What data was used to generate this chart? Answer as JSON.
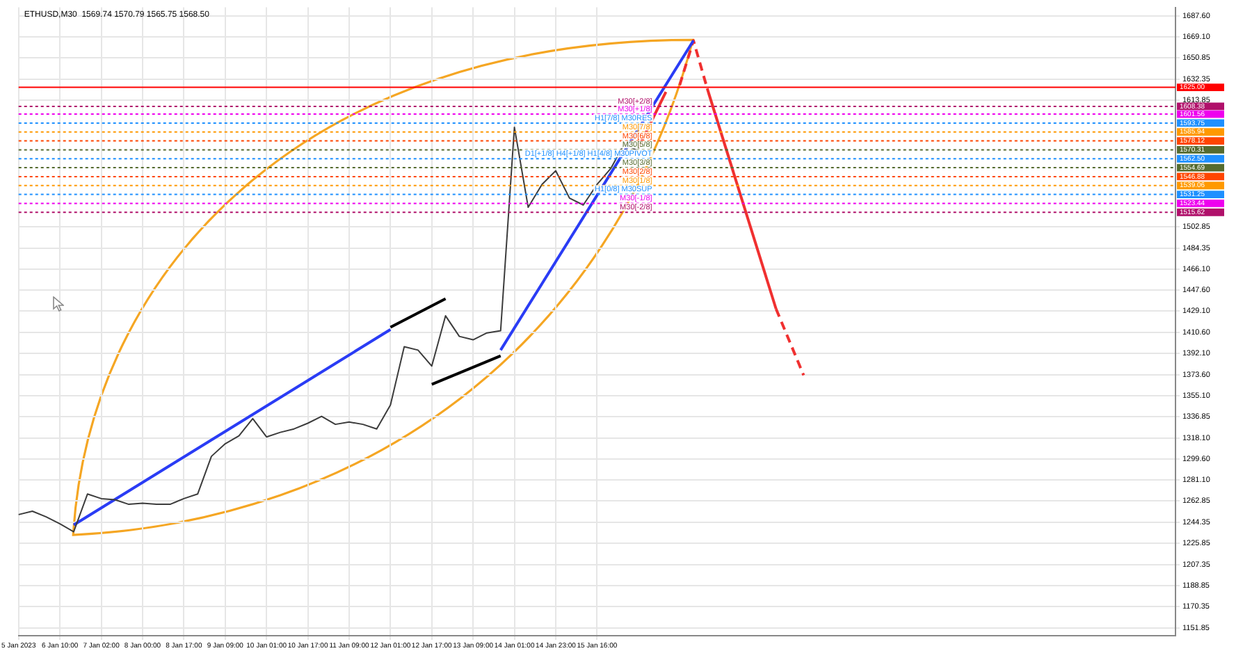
{
  "chart_data": {
    "type": "line",
    "title": "ETHUSD,M30  1569.74 1570.79 1565.75 1568.50",
    "categories": [
      "5 Jan 2023",
      null,
      null,
      "6 Jan 10:00",
      null,
      null,
      "7 Jan 02:00",
      null,
      null,
      "8 Jan 00:00",
      null,
      null,
      "8 Jan 17:00",
      null,
      null,
      "9 Jan 09:00",
      null,
      null,
      "10 Jan 01:00",
      null,
      null,
      "10 Jan 17:00",
      null,
      null,
      "11 Jan 09:00",
      null,
      null,
      "12 Jan 01:00",
      null,
      null,
      "12 Jan 17:00",
      null,
      null,
      "13 Jan 09:00",
      null,
      null,
      "14 Jan 01:00",
      null,
      null,
      "14 Jan 23:00",
      null,
      null,
      "15 Jan 16:00",
      null,
      null,
      null,
      null,
      null,
      null,
      null,
      null,
      null,
      null,
      null,
      null,
      null,
      null,
      null,
      null,
      null,
      null,
      null,
      null,
      null,
      null,
      null,
      null,
      null,
      null,
      null,
      null,
      null,
      null,
      null,
      null,
      null,
      null,
      null,
      null,
      null,
      null,
      null,
      null,
      null,
      null
    ],
    "series": [
      {
        "type": "line",
        "color": "#3c3c3c",
        "values": [
          1251,
          1254,
          1249,
          1243,
          1236,
          1269,
          1265,
          1264,
          1260,
          1261,
          1260,
          1260,
          1265,
          1269,
          1302,
          1313,
          1320,
          1335,
          1319,
          1323,
          1326,
          1331,
          1337,
          1330,
          1332,
          1330,
          1326,
          1347,
          1398,
          1395,
          1381,
          1425,
          1407,
          1404,
          1410,
          1412,
          1590,
          1520,
          1540,
          1552,
          1528,
          1522,
          1540,
          1554,
          1576,
          1569,
          null,
          null,
          null,
          null,
          null,
          null,
          null,
          null,
          null,
          null,
          null,
          null,
          null,
          null,
          null,
          null,
          null,
          null,
          null,
          null,
          null,
          null,
          null,
          null,
          null,
          null,
          null,
          null,
          null,
          null,
          null,
          null,
          null,
          null,
          null,
          null,
          null,
          null,
          null
        ]
      },
      {
        "type": "line",
        "color": "#2a3cf5",
        "values": [
          null,
          null,
          null,
          null,
          1242,
          null,
          null,
          null,
          null,
          null,
          null,
          null,
          null,
          null,
          null,
          null,
          null,
          null,
          null,
          null,
          null,
          null,
          null,
          null,
          null,
          null,
          null,
          1413,
          null,
          null,
          null,
          null,
          null,
          null,
          null,
          null,
          null,
          null,
          null,
          null,
          null,
          null,
          null,
          null,
          null,
          null,
          null,
          null,
          null,
          null,
          null,
          null,
          null,
          null,
          null,
          null,
          null,
          null,
          null,
          null,
          null,
          null,
          null,
          null,
          null,
          null,
          null,
          null,
          null,
          null,
          null,
          null,
          null,
          null,
          null,
          null,
          null,
          null,
          null,
          null,
          null,
          null,
          null,
          null,
          null
        ]
      },
      {
        "type": "line",
        "color": "#2a3cf5",
        "values": [
          null,
          null,
          null,
          null,
          null,
          null,
          null,
          null,
          null,
          null,
          null,
          null,
          null,
          null,
          null,
          null,
          null,
          null,
          null,
          null,
          null,
          null,
          null,
          null,
          null,
          null,
          null,
          null,
          null,
          null,
          null,
          null,
          null,
          null,
          null,
          1395,
          null,
          null,
          null,
          null,
          null,
          null,
          null,
          null,
          null,
          null,
          null,
          null,
          null,
          1666,
          null,
          null,
          null,
          null,
          null,
          null,
          null,
          null,
          null,
          null,
          null,
          null,
          null,
          null,
          null,
          null,
          null,
          null,
          null,
          null,
          null,
          null,
          null,
          null,
          null,
          null,
          null,
          null,
          null,
          null,
          null,
          null,
          null,
          null,
          null
        ]
      },
      {
        "type": "line",
        "color": "#000000",
        "values": [
          null,
          null,
          null,
          null,
          null,
          null,
          null,
          null,
          null,
          null,
          null,
          null,
          null,
          null,
          null,
          null,
          null,
          null,
          null,
          null,
          null,
          null,
          null,
          null,
          null,
          null,
          null,
          1415,
          null,
          null,
          null,
          1440,
          null,
          null,
          null,
          null,
          null,
          null,
          null,
          null,
          null,
          null,
          null,
          null,
          null,
          null,
          null,
          null,
          null,
          null,
          null,
          null,
          null,
          null,
          null,
          null,
          null,
          null,
          null,
          null,
          null,
          null,
          null,
          null,
          null,
          null,
          null,
          null,
          null,
          null,
          null,
          null,
          null,
          null,
          null,
          null,
          null,
          null,
          null,
          null,
          null,
          null,
          null,
          null,
          null
        ]
      },
      {
        "type": "line",
        "color": "#000000",
        "values": [
          null,
          null,
          null,
          null,
          null,
          null,
          null,
          null,
          null,
          null,
          null,
          null,
          null,
          null,
          null,
          null,
          null,
          null,
          null,
          null,
          null,
          null,
          null,
          null,
          null,
          null,
          null,
          null,
          null,
          null,
          1365,
          null,
          null,
          null,
          null,
          1390,
          null,
          null,
          null,
          null,
          null,
          null,
          null,
          null,
          null,
          null,
          null,
          null,
          null,
          null,
          null,
          null,
          null,
          null,
          null,
          null,
          null,
          null,
          null,
          null,
          null,
          null,
          null,
          null,
          null,
          null,
          null,
          null,
          null,
          null,
          null,
          null,
          null,
          null,
          null,
          null,
          null,
          null,
          null,
          null,
          null,
          null,
          null,
          null,
          null
        ]
      },
      {
        "type": "line",
        "color": "#f03030",
        "line_style": "solid",
        "values": [
          null,
          null,
          null,
          null,
          null,
          null,
          null,
          null,
          null,
          null,
          null,
          null,
          null,
          null,
          null,
          null,
          null,
          null,
          null,
          null,
          null,
          null,
          null,
          null,
          null,
          null,
          null,
          null,
          null,
          null,
          null,
          null,
          null,
          null,
          null,
          null,
          null,
          null,
          null,
          null,
          null,
          null,
          null,
          null,
          null,
          1572,
          null,
          1621,
          null,
          null,
          null,
          null,
          null,
          null,
          null,
          null,
          null,
          null,
          null,
          null,
          null,
          null,
          null,
          null,
          null,
          null,
          null,
          null,
          null,
          null,
          null,
          null,
          null,
          null,
          null,
          null,
          null,
          null,
          null,
          null,
          null,
          null,
          null,
          null,
          null
        ]
      },
      {
        "type": "line",
        "color": "#f03030",
        "line_style": "dashed",
        "values": [
          null,
          null,
          null,
          null,
          null,
          null,
          null,
          null,
          null,
          null,
          null,
          null,
          null,
          null,
          null,
          null,
          null,
          null,
          null,
          null,
          null,
          null,
          null,
          null,
          null,
          null,
          null,
          null,
          null,
          null,
          null,
          null,
          null,
          null,
          null,
          null,
          null,
          null,
          null,
          null,
          null,
          null,
          null,
          null,
          null,
          null,
          null,
          null,
          1627,
          1666,
          1624,
          null,
          null,
          null,
          null,
          null,
          null,
          null,
          null,
          null,
          null,
          null,
          null,
          null,
          null,
          null,
          null,
          null,
          null,
          null,
          null,
          null,
          null,
          null,
          null,
          null,
          null,
          null,
          null,
          null,
          null,
          null,
          null,
          null,
          null
        ]
      },
      {
        "type": "line",
        "color": "#f03030",
        "line_style": "solid",
        "values": [
          null,
          null,
          null,
          null,
          null,
          null,
          null,
          null,
          null,
          null,
          null,
          null,
          null,
          null,
          null,
          null,
          null,
          null,
          null,
          null,
          null,
          null,
          null,
          null,
          null,
          null,
          null,
          null,
          null,
          null,
          null,
          null,
          null,
          null,
          null,
          null,
          null,
          null,
          null,
          null,
          null,
          null,
          null,
          null,
          null,
          null,
          null,
          null,
          null,
          null,
          1624,
          null,
          null,
          null,
          null,
          1431,
          null,
          null,
          null,
          null,
          null,
          null,
          null,
          null,
          null,
          null,
          null,
          null,
          null,
          null,
          null,
          null,
          null,
          null,
          null,
          null,
          null,
          null,
          null,
          null,
          null,
          null,
          null,
          null,
          null
        ]
      },
      {
        "type": "line",
        "color": "#f03030",
        "line_style": "dashed",
        "values": [
          null,
          null,
          null,
          null,
          null,
          null,
          null,
          null,
          null,
          null,
          null,
          null,
          null,
          null,
          null,
          null,
          null,
          null,
          null,
          null,
          null,
          null,
          null,
          null,
          null,
          null,
          null,
          null,
          null,
          null,
          null,
          null,
          null,
          null,
          null,
          null,
          null,
          null,
          null,
          null,
          null,
          null,
          null,
          null,
          null,
          null,
          null,
          null,
          null,
          null,
          null,
          null,
          null,
          null,
          null,
          1431,
          null,
          1373,
          null,
          null,
          null,
          null,
          null,
          null,
          null,
          null,
          null,
          null,
          null,
          null,
          null,
          null,
          null,
          null,
          null,
          null,
          null,
          null,
          null,
          null,
          null,
          null,
          null,
          null,
          null
        ]
      }
    ],
    "ylim": [
      1145,
      1695
    ],
    "yticks": [
      1151.85,
      1170.35,
      1188.85,
      1207.35,
      1225.85,
      1244.35,
      1262.85,
      {
        "value": 1281.1,
        "label": "1281.10"
      },
      {
        "value": 1299.6,
        "label": "1299.60"
      },
      {
        "value": 1318.1,
        "label": "1318.10"
      },
      1336.85,
      {
        "value": 1355.1,
        "label": "1355.10"
      },
      {
        "value": 1373.6,
        "label": "1373.60"
      },
      {
        "value": 1392.1,
        "label": "1392.10"
      },
      {
        "value": 1410.6,
        "label": "1410.60"
      },
      {
        "value": 1429.1,
        "label": "1429.10"
      },
      {
        "value": 1447.6,
        "label": "1447.60"
      },
      {
        "value": 1466.1,
        "label": "1466.10"
      },
      1484.35,
      1502.85,
      1613.85,
      1632.35,
      1650.85,
      {
        "value": 1669.1,
        "label": "1669.10"
      },
      {
        "value": 1687.6,
        "label": "1687.60"
      }
    ],
    "grid": true,
    "ref_lines": [
      {
        "axis": "y",
        "value": 1625,
        "label": "1625.00",
        "color": "#ff0000",
        "line_style": "solid"
      },
      {
        "axis": "y",
        "value": 1608.38,
        "label": "1608.38",
        "color": "#b0106a",
        "line_style": "dotted"
      },
      {
        "axis": "y",
        "value": 1601.56,
        "label": "1601.56",
        "color": "#ee00ee",
        "line_style": "dotted"
      },
      {
        "axis": "y",
        "value": 1593.75,
        "label": "1593.75",
        "color": "#1e90ff",
        "line_style": "dotted"
      },
      {
        "axis": "y",
        "value": 1585.94,
        "label": "1585.94",
        "color": "#ff9900",
        "line_style": "dotted"
      },
      {
        "axis": "y",
        "value": 1578.12,
        "label": "1578.12",
        "color": "#ff4500",
        "line_style": "dotted"
      },
      {
        "axis": "y",
        "value": 1570.31,
        "label": "1570.31",
        "color": "#556b2f",
        "line_style": "dotted"
      },
      {
        "axis": "y",
        "value": 1562.5,
        "label": "1562.50",
        "color": "#1e90ff",
        "line_style": "dotted"
      },
      {
        "axis": "y",
        "value": 1554.69,
        "label": "1554.69",
        "color": "#556b2f",
        "line_style": "dotted"
      },
      {
        "axis": "y",
        "value": 1546.88,
        "label": "1546.88",
        "color": "#ff4500",
        "line_style": "dotted"
      },
      {
        "axis": "y",
        "value": 1539.06,
        "label": "1539.06",
        "color": "#ff9900",
        "line_style": "dotted"
      },
      {
        "axis": "y",
        "value": 1531.25,
        "label": "1531.25",
        "color": "#1e90ff",
        "line_style": "dotted"
      },
      {
        "axis": "y",
        "value": 1523.44,
        "label": "1523.44",
        "color": "#ee00ee",
        "line_style": "dotted"
      },
      {
        "axis": "y",
        "value": 1515.62,
        "label": "1515.62",
        "color": "#b0106a",
        "line_style": "dotted"
      }
    ],
    "annotations": [
      {
        "text": "M30[+2/8]",
        "y": 1608.38
      },
      {
        "text": "M30[+1/8]",
        "y": 1601.56
      },
      {
        "text": "H1[7/8] M30RES",
        "y": 1593.75
      },
      {
        "text": "M30[7/8]",
        "y": 1585.94
      },
      {
        "text": "M30[6/8]",
        "y": 1578.12
      },
      {
        "text": "M30[5/8]",
        "y": 1570.31
      },
      {
        "text": "D1[+1/8] H4[+1/8] H1[4/8] M30PIVOT",
        "y": 1562.5
      },
      {
        "text": "M30[3/8]",
        "y": 1554.69
      },
      {
        "text": "M30[2/8]",
        "y": 1546.88
      },
      {
        "text": "M30[1/8]",
        "y": 1539.06
      },
      {
        "text": "H1[0/8] M30SUP",
        "y": 1531.25
      },
      {
        "text": "M30[-1/8]",
        "y": 1523.44
      },
      {
        "text": "M30[-2/8]",
        "y": 1515.62
      }
    ]
  }
}
